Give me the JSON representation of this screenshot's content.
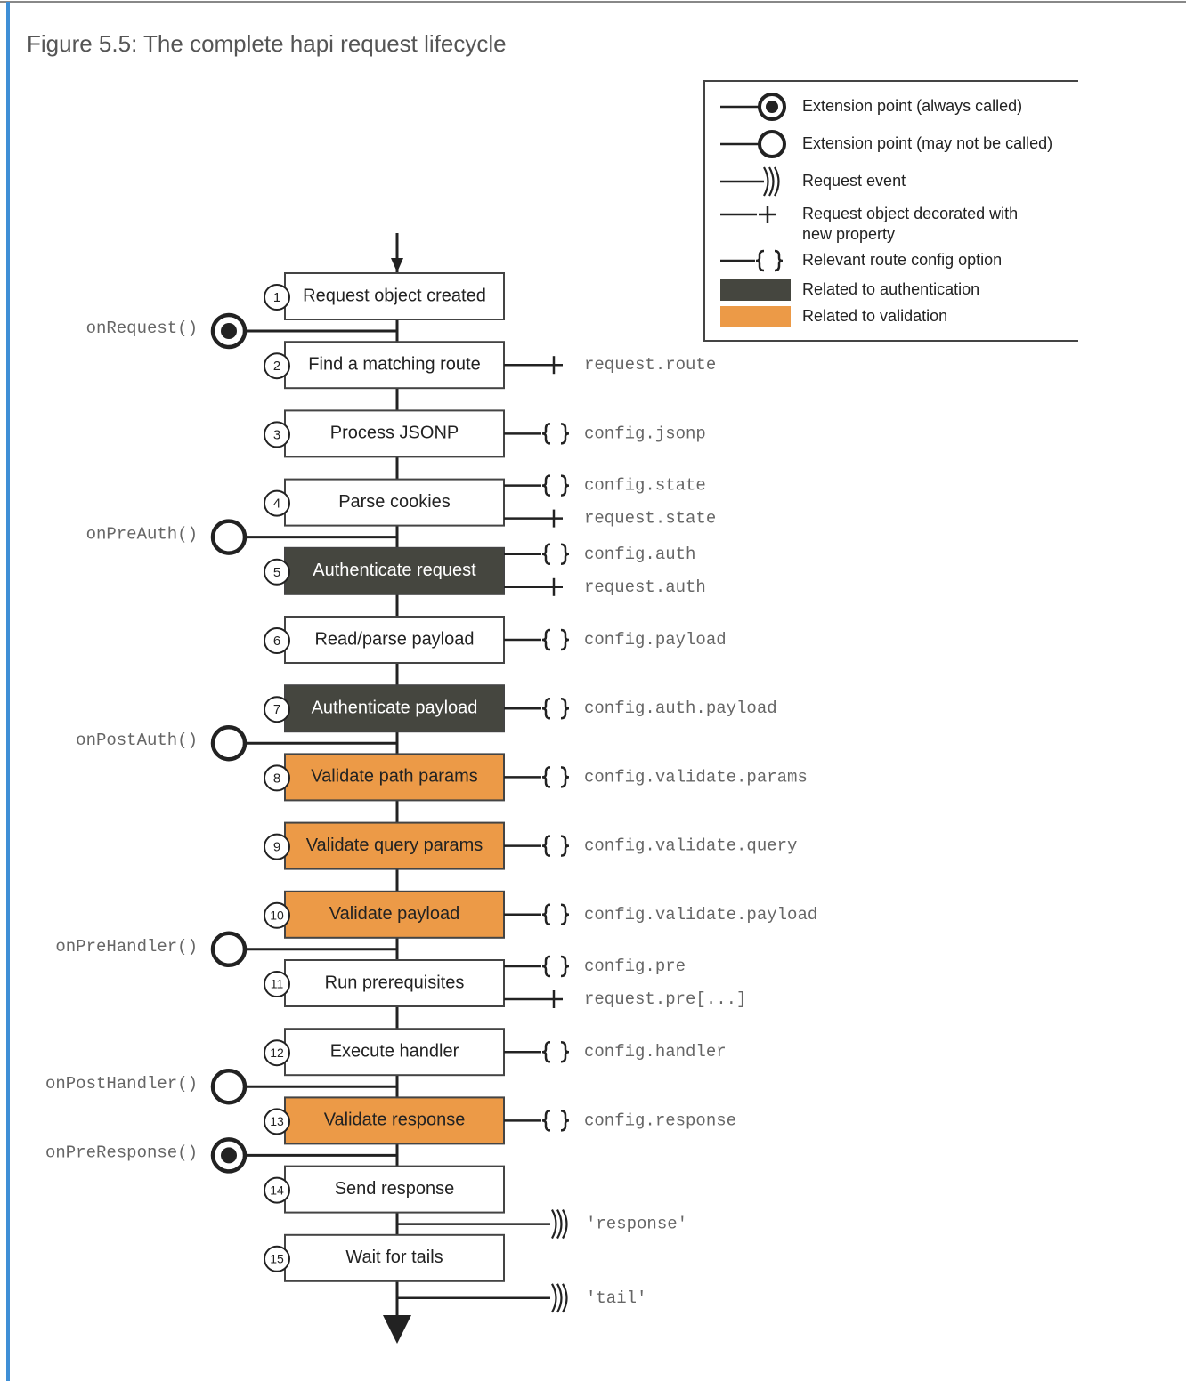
{
  "caption": "Figure 5.5: The complete hapi request lifecycle",
  "legend": [
    {
      "lines": [
        "Extension point (always called)"
      ]
    },
    {
      "lines": [
        "Extension point (may not be called)"
      ]
    },
    {
      "lines": [
        "Request event"
      ]
    },
    {
      "lines": [
        "Request object decorated with",
        "new property"
      ]
    },
    {
      "lines": [
        "Relevant route config option"
      ]
    },
    {
      "lines": [
        "Related to authentication"
      ],
      "color": "#45463f"
    },
    {
      "lines": [
        "Related to validation"
      ],
      "color": "#ec9a47"
    }
  ],
  "steps": [
    {
      "number": "1",
      "label": "Request object created",
      "config": [],
      "decorates": [],
      "hook_after": {
        "name": "onRequest()",
        "always_called": true
      }
    },
    {
      "number": "2",
      "label": "Find a matching route",
      "config": [],
      "decorates": [
        "request.route"
      ]
    },
    {
      "number": "3",
      "label": "Process JSONP",
      "config": [
        "config.jsonp"
      ],
      "decorates": []
    },
    {
      "number": "4",
      "label": "Parse cookies",
      "config": [
        "config.state"
      ],
      "decorates": [
        "request.state"
      ],
      "hook_after": {
        "name": "onPreAuth()",
        "always_called": false
      }
    },
    {
      "number": "5",
      "label": "Authenticate request",
      "color": "#45463f",
      "config": [
        "config.auth"
      ],
      "decorates": [
        "request.auth"
      ]
    },
    {
      "number": "6",
      "label": "Read/parse payload",
      "config": [
        "config.payload"
      ],
      "decorates": []
    },
    {
      "number": "7",
      "label": "Authenticate payload",
      "color": "#45463f",
      "config": [
        "config.auth.payload"
      ],
      "decorates": [],
      "hook_after": {
        "name": "onPostAuth()",
        "always_called": false
      }
    },
    {
      "number": "8",
      "label": "Validate path params",
      "color": "#ec9a47",
      "config": [
        "config.validate.params"
      ],
      "decorates": []
    },
    {
      "number": "9",
      "label": "Validate query params",
      "color": "#ec9a47",
      "config": [
        "config.validate.query"
      ],
      "decorates": []
    },
    {
      "number": "10",
      "label": "Validate payload",
      "color": "#ec9a47",
      "config": [
        "config.validate.payload"
      ],
      "decorates": [],
      "hook_after": {
        "name": "onPreHandler()",
        "always_called": false
      }
    },
    {
      "number": "11",
      "label": "Run prerequisites",
      "config": [
        "config.pre"
      ],
      "decorates": [
        "request.pre[...]"
      ]
    },
    {
      "number": "12",
      "label": "Execute handler",
      "config": [
        "config.handler"
      ],
      "decorates": [],
      "hook_after": {
        "name": "onPostHandler()",
        "always_called": false
      }
    },
    {
      "number": "13",
      "label": "Validate response",
      "color": "#ec9a47",
      "config": [
        "config.response"
      ],
      "decorates": [],
      "hook_after": {
        "name": "onPreResponse()",
        "always_called": true
      }
    },
    {
      "number": "14",
      "label": "Send response",
      "config": [],
      "decorates": [],
      "event": "'response'"
    },
    {
      "number": "15",
      "label": "Wait for tails",
      "config": [],
      "decorates": [],
      "event": "'tail'"
    }
  ]
}
